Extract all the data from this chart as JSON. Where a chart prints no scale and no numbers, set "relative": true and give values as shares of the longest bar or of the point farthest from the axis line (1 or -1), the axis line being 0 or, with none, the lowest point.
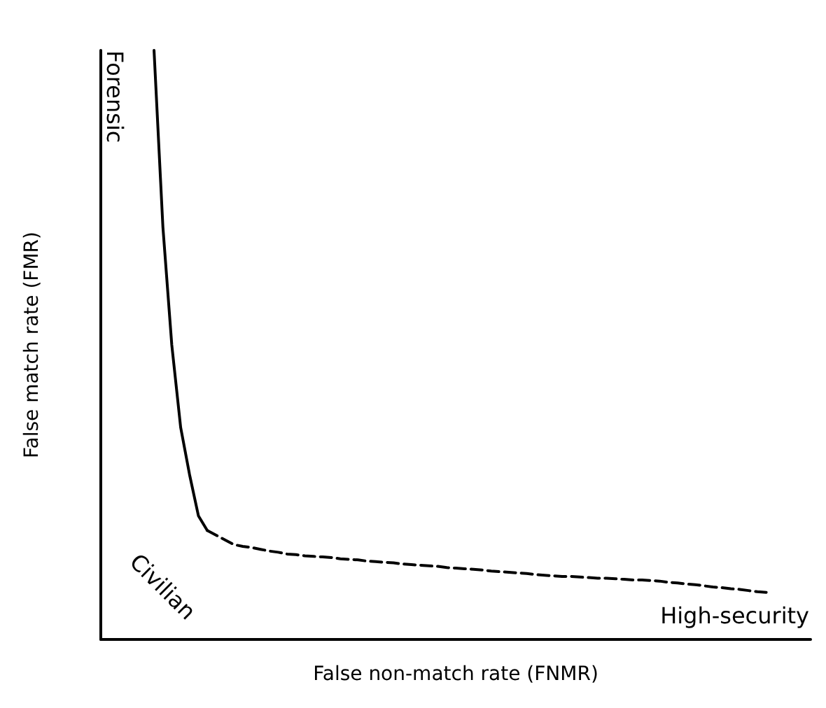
{
  "chart_data": {
    "type": "line",
    "relative": true,
    "xlabel": "False non-match rate (FNMR)",
    "ylabel": "False match rate (FMR)",
    "marker": "none",
    "annotations": [
      "Forensic",
      "Civilian",
      "High-security"
    ],
    "categories": [
      null,
      null,
      null,
      null,
      null,
      null,
      null,
      null,
      null,
      null,
      null,
      null,
      null,
      null,
      null,
      null,
      null,
      null,
      null,
      null,
      null,
      null,
      null,
      null,
      null,
      null,
      null,
      null,
      null,
      null,
      null,
      null,
      null,
      null,
      null,
      null,
      null,
      null,
      null,
      null,
      null,
      null,
      null,
      null,
      null,
      null,
      null,
      null,
      null,
      null,
      null,
      null,
      null,
      null,
      null,
      null,
      null,
      null,
      null,
      null,
      null,
      null,
      null,
      null,
      null,
      null,
      null,
      null,
      null,
      null,
      null,
      null,
      null,
      null,
      null,
      null,
      null,
      null,
      null,
      null,
      null
    ],
    "series": [
      {
        "color": "#000000",
        "line_style": "solid",
        "values": [
          null,
          null,
          null,
          null,
          null,
          null,
          1.0,
          0.7,
          0.5,
          0.36,
          0.28,
          0.21,
          0.185,
          null,
          null,
          null,
          null,
          null,
          null,
          null,
          null,
          null,
          null,
          null,
          null,
          null,
          null,
          null,
          null,
          null,
          null,
          null,
          null,
          null,
          null,
          null,
          null,
          null,
          null,
          null,
          null,
          null,
          null,
          null,
          null,
          null,
          null,
          null,
          null,
          null,
          null,
          null,
          null,
          null,
          null,
          null,
          null,
          null,
          null,
          null,
          null,
          null,
          null,
          null,
          null,
          null,
          null,
          null,
          null,
          null,
          null,
          null,
          null,
          null,
          null,
          null,
          null,
          null,
          null,
          null,
          null
        ]
      },
      {
        "color": "#000000",
        "line_style": "dashed",
        "values": [
          null,
          null,
          null,
          null,
          null,
          null,
          null,
          null,
          null,
          null,
          null,
          null,
          0.185,
          0.177,
          0.169,
          0.161,
          0.158,
          0.156,
          0.153,
          0.15,
          0.148,
          0.145,
          0.144,
          0.142,
          0.141,
          0.14,
          0.139,
          0.137,
          0.136,
          0.135,
          0.133,
          0.132,
          0.131,
          0.13,
          0.128,
          0.127,
          0.126,
          0.125,
          0.124,
          0.122,
          0.121,
          0.12,
          0.119,
          0.118,
          0.116,
          0.115,
          0.114,
          0.113,
          0.112,
          0.11,
          0.109,
          0.108,
          0.107,
          0.107,
          0.106,
          0.105,
          0.104,
          0.104,
          0.103,
          0.102,
          0.101,
          0.101,
          0.1,
          0.099,
          0.097,
          0.096,
          0.094,
          0.093,
          0.091,
          0.089,
          0.088,
          0.086,
          0.085,
          0.083,
          0.081,
          0.08,
          null,
          null,
          null,
          null,
          null
        ]
      }
    ]
  }
}
